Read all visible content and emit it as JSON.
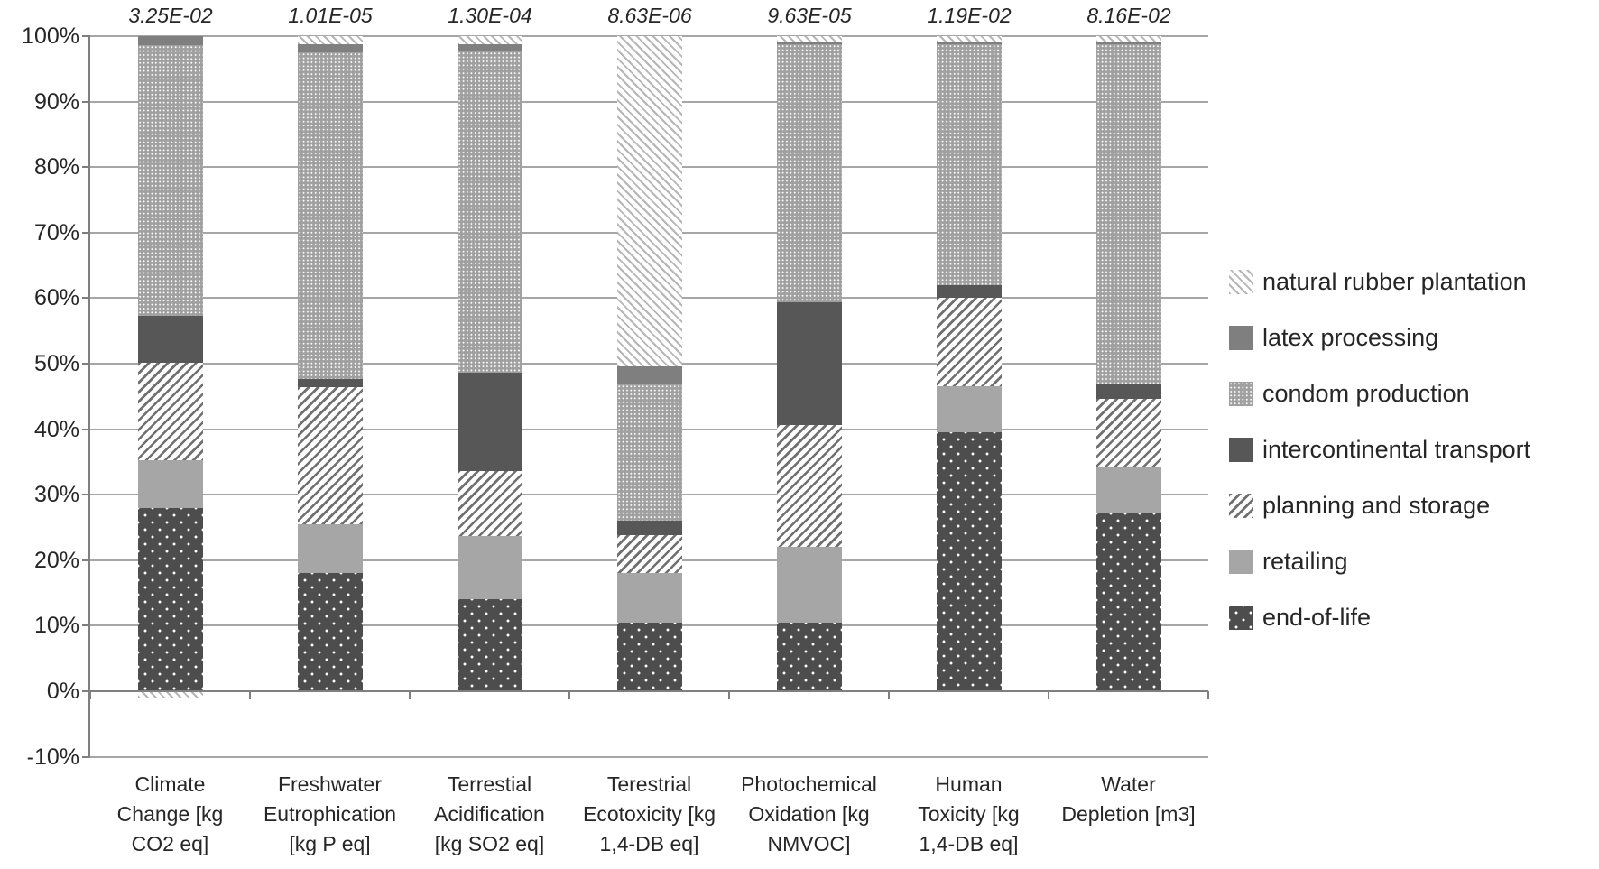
{
  "chart_data": {
    "type": "bar",
    "subtype": "100%-stacked-column",
    "title": "",
    "xlabel": "",
    "ylabel": "",
    "grid": true,
    "legend_position": "right",
    "y_axis": {
      "min": -10,
      "max": 100,
      "step": 10,
      "tick_labels": [
        "100%",
        "90%",
        "80%",
        "70%",
        "60%",
        "50%",
        "40%",
        "30%",
        "20%",
        "10%",
        "0%",
        "-10%"
      ]
    },
    "categories": [
      {
        "label": "Climate\nChange [kg\nCO2 eq]",
        "total": "3.25E-02"
      },
      {
        "label": "Freshwater\nEutrophication\n[kg P eq]",
        "total": "1.01E-05"
      },
      {
        "label": "Terrestial\nAcidification\n[kg SO2 eq]",
        "total": "1.30E-04"
      },
      {
        "label": "Terestrial\nEcotoxicity [kg\n1,4-DB eq]",
        "total": "8.63E-06"
      },
      {
        "label": "Photochemical\nOxidation [kg\nNMVOC]",
        "total": "9.63E-05"
      },
      {
        "label": "Human\nToxicity [kg\n1,4-DB eq]",
        "total": "1.19E-02"
      },
      {
        "label": "Water\nDepletion [m3]",
        "total": "8.16E-02"
      }
    ],
    "series_note": "values are percent of each impact-category total; stack order is bottom to top; negative value plots below the 0% axis",
    "series": [
      {
        "name": "end-of-life",
        "pattern": "eol",
        "values": [
          28.0,
          18.0,
          14.0,
          10.5,
          10.5,
          39.5,
          27.2
        ]
      },
      {
        "name": "retailing",
        "pattern": "retail",
        "values": [
          7.3,
          7.5,
          9.7,
          7.6,
          11.5,
          7.0,
          7.0
        ]
      },
      {
        "name": "planning and storage",
        "pattern": "planning",
        "values": [
          14.9,
          20.9,
          9.9,
          5.7,
          18.6,
          13.5,
          10.4
        ]
      },
      {
        "name": "intercontinental transport",
        "pattern": "transport",
        "values": [
          7.1,
          1.3,
          15.0,
          2.3,
          18.8,
          2.0,
          2.2
        ]
      },
      {
        "name": "condom production",
        "pattern": "condom",
        "values": [
          41.3,
          49.8,
          49.0,
          20.7,
          39.3,
          36.7,
          51.9
        ]
      },
      {
        "name": "latex processing",
        "pattern": "latex",
        "values": [
          1.4,
          1.3,
          1.2,
          2.8,
          0.3,
          0.3,
          0.3
        ]
      },
      {
        "name": "natural rubber plantation",
        "pattern": "rubber",
        "values": [
          -1.0,
          1.2,
          1.2,
          50.4,
          1.0,
          1.0,
          1.0
        ]
      }
    ],
    "legend": [
      {
        "label": "natural rubber plantation",
        "pattern": "rubber"
      },
      {
        "label": "latex processing",
        "pattern": "latex"
      },
      {
        "label": "condom production",
        "pattern": "condom"
      },
      {
        "label": "intercontinental transport",
        "pattern": "transport"
      },
      {
        "label": "planning and storage",
        "pattern": "planning"
      },
      {
        "label": "retailing",
        "pattern": "retail"
      },
      {
        "label": "end-of-life",
        "pattern": "eol"
      }
    ]
  },
  "colors": {
    "grid": "#a6a6a6",
    "axis": "#7f7f7f",
    "text": "#262626",
    "latex_processing": "#7f7f7f",
    "intercontinental_transport": "#575757",
    "retailing": "#a6a6a6",
    "end_of_life_base": "#4d4d4d",
    "condom_production_base": "#a0a0a0",
    "background": "#ffffff"
  }
}
